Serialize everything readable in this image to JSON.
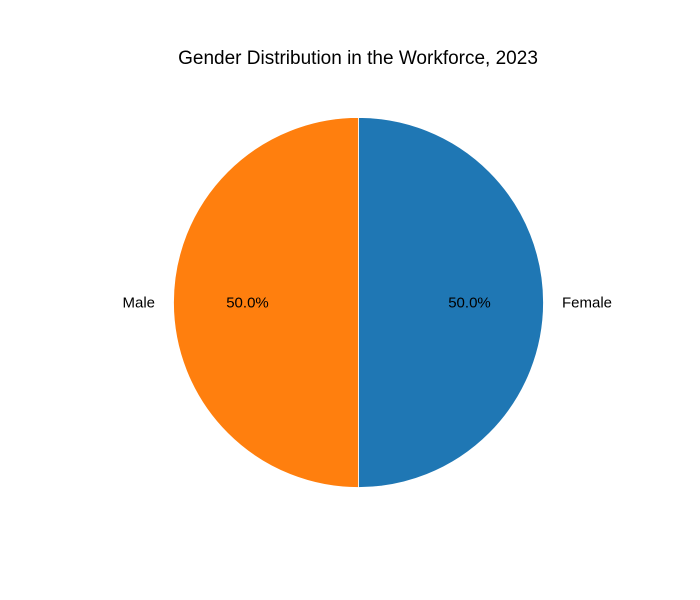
{
  "chart_data": {
    "type": "pie",
    "title": "Gender Distribution in the Workforce, 2023",
    "slices": [
      {
        "label": "Female",
        "value": 50.0,
        "pct_label": "50.0%",
        "color": "#1f77b4"
      },
      {
        "label": "Male",
        "value": 50.0,
        "pct_label": "50.0%",
        "color": "#ff7f0e"
      }
    ],
    "start_angle_deg": 90,
    "direction": "clockwise",
    "slice_edge_color": "#ffffff"
  }
}
